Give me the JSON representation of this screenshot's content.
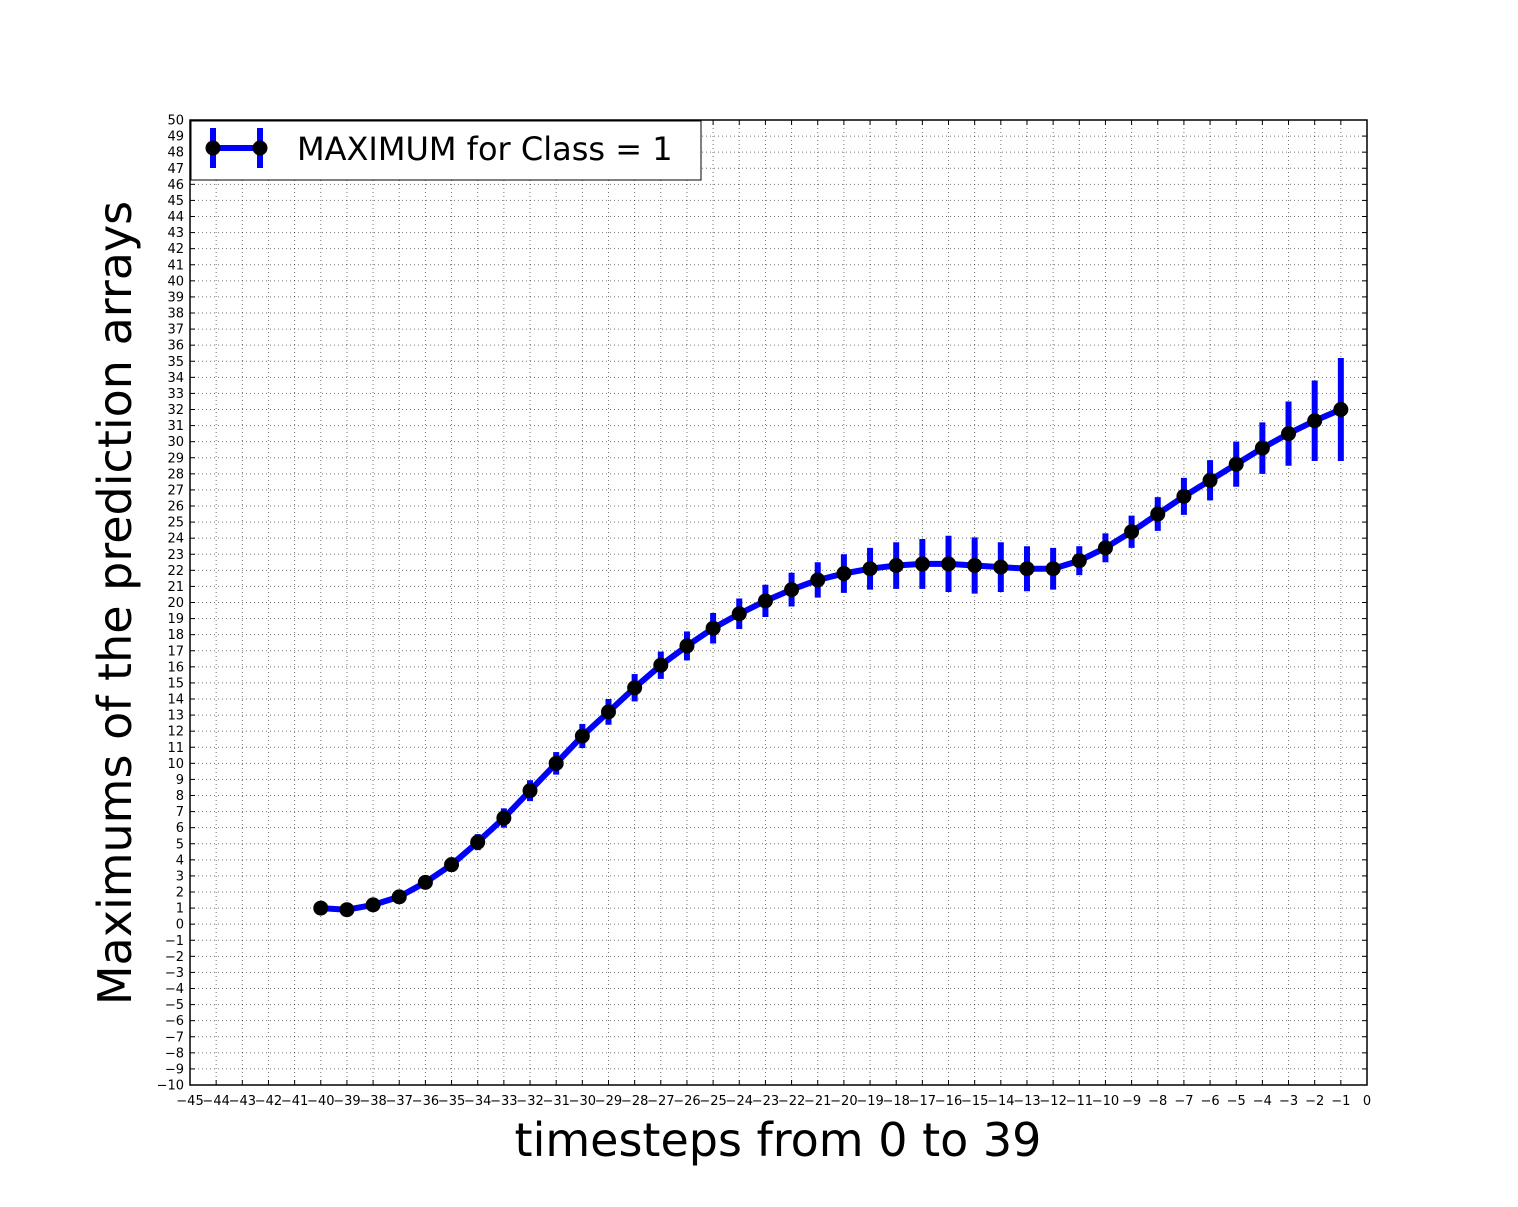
{
  "chart_data": {
    "type": "line",
    "title": "",
    "xlabel": "timesteps from 0 to 39",
    "ylabel": "Maximums of the prediction arrays",
    "xlim": [
      -45,
      0
    ],
    "ylim": [
      -10,
      50
    ],
    "x_tick_step": 1,
    "y_tick_step": 1,
    "grid": true,
    "legend_position": "upper-left",
    "error_bars": true,
    "series": [
      {
        "name": "MAXIMUM for Class = 1",
        "line_color": "#0000ff",
        "marker_color": "#000000",
        "x": [
          -40,
          -39,
          -38,
          -37,
          -36,
          -35,
          -34,
          -33,
          -32,
          -31,
          -30,
          -29,
          -28,
          -27,
          -26,
          -25,
          -24,
          -23,
          -22,
          -21,
          -20,
          -19,
          -18,
          -17,
          -16,
          -15,
          -14,
          -13,
          -12,
          -11,
          -10,
          -9,
          -8,
          -7,
          -6,
          -5,
          -4,
          -3,
          -2,
          -1
        ],
        "y": [
          1.0,
          0.9,
          1.2,
          1.7,
          2.6,
          3.7,
          5.1,
          6.6,
          8.3,
          10.0,
          11.7,
          13.2,
          14.7,
          16.1,
          17.3,
          18.4,
          19.3,
          20.1,
          20.8,
          21.4,
          21.8,
          22.1,
          22.3,
          22.4,
          22.4,
          22.3,
          22.2,
          22.1,
          22.1,
          22.6,
          23.4,
          24.4,
          25.5,
          26.6,
          27.6,
          28.6,
          29.6,
          30.5,
          31.3,
          32.0
        ],
        "yerr": [
          0.25,
          0.25,
          0.3,
          0.35,
          0.4,
          0.45,
          0.5,
          0.6,
          0.65,
          0.7,
          0.75,
          0.8,
          0.85,
          0.85,
          0.9,
          0.95,
          0.95,
          1.0,
          1.05,
          1.1,
          1.2,
          1.3,
          1.45,
          1.55,
          1.75,
          1.75,
          1.55,
          1.4,
          1.3,
          0.9,
          0.9,
          1.0,
          1.05,
          1.15,
          1.25,
          1.4,
          1.6,
          2.0,
          2.5,
          3.2
        ]
      }
    ]
  }
}
